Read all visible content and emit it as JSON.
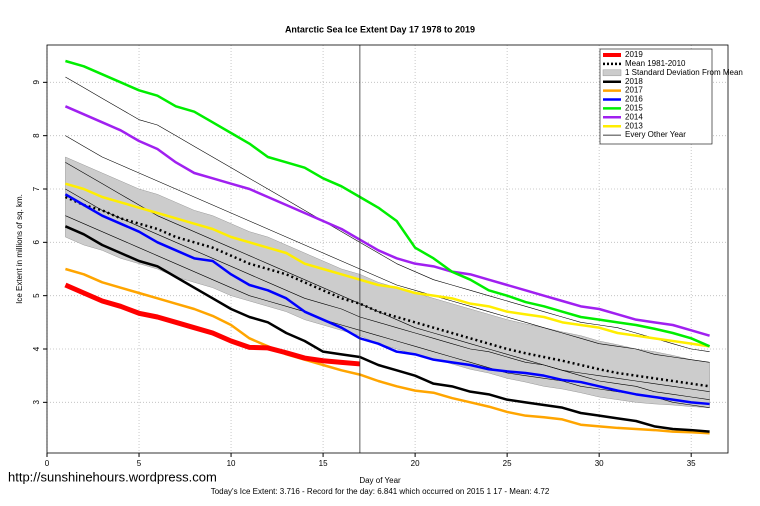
{
  "chart_data": {
    "type": "line",
    "title": "Antarctic Sea Ice Extent Day 17 1978 to 2019",
    "x_label": "Day of Year",
    "y_label": "Ice Extent in millions of sq. km.",
    "footer": "Today's Ice Extent: 3.716  - Record for the day: 6.841 which occurred on 2015 1 17  - Mean: 4.72",
    "watermark": "http://sunshinehours.wordpress.com",
    "xlim": [
      0,
      37
    ],
    "ylim": [
      2.05,
      9.7
    ],
    "xticks": [
      0,
      5,
      10,
      15,
      20,
      25,
      30,
      35
    ],
    "yticks": [
      3,
      4,
      5,
      6,
      7,
      8,
      9
    ],
    "grid": true,
    "legend_position": "top-right",
    "vline": 17,
    "x": [
      1,
      2,
      3,
      4,
      5,
      6,
      7,
      8,
      9,
      10,
      11,
      12,
      13,
      14,
      15,
      16,
      17,
      18,
      19,
      20,
      21,
      22,
      23,
      24,
      25,
      26,
      27,
      28,
      29,
      30,
      31,
      32,
      33,
      34,
      35,
      36
    ],
    "series": [
      {
        "name": "2019",
        "color": "#ff0000",
        "width": 5,
        "values": [
          5.2,
          5.05,
          4.9,
          4.8,
          4.67,
          4.6,
          4.5,
          4.4,
          4.3,
          4.15,
          4.03,
          4.02,
          3.93,
          3.83,
          3.78,
          3.75,
          3.72,
          null,
          null,
          null,
          null,
          null,
          null,
          null,
          null,
          null,
          null,
          null,
          null,
          null,
          null,
          null,
          null,
          null,
          null,
          null
        ]
      },
      {
        "name": "2018",
        "color": "#000000",
        "width": 2.5,
        "values": [
          6.3,
          6.15,
          5.95,
          5.8,
          5.65,
          5.55,
          5.35,
          5.15,
          4.95,
          4.75,
          4.6,
          4.5,
          4.3,
          4.15,
          3.95,
          3.9,
          3.85,
          3.7,
          3.6,
          3.5,
          3.35,
          3.3,
          3.2,
          3.15,
          3.05,
          3.0,
          2.95,
          2.9,
          2.8,
          2.75,
          2.7,
          2.65,
          2.55,
          2.5,
          2.48,
          2.45
        ]
      },
      {
        "name": "2017",
        "color": "#ffa500",
        "width": 2.5,
        "values": [
          5.5,
          5.4,
          5.25,
          5.15,
          5.05,
          4.95,
          4.85,
          4.75,
          4.62,
          4.45,
          4.2,
          4.05,
          3.9,
          3.8,
          3.7,
          3.6,
          3.52,
          3.4,
          3.3,
          3.22,
          3.18,
          3.08,
          3.0,
          2.92,
          2.82,
          2.75,
          2.72,
          2.68,
          2.58,
          2.55,
          2.52,
          2.5,
          2.48,
          2.45,
          2.44,
          2.42
        ]
      },
      {
        "name": "2016",
        "color": "#0000ff",
        "width": 2.5,
        "values": [
          6.9,
          6.7,
          6.5,
          6.35,
          6.2,
          6.0,
          5.85,
          5.7,
          5.65,
          5.4,
          5.2,
          5.1,
          4.95,
          4.7,
          4.55,
          4.4,
          4.2,
          4.1,
          3.95,
          3.9,
          3.8,
          3.75,
          3.7,
          3.62,
          3.58,
          3.55,
          3.5,
          3.42,
          3.38,
          3.3,
          3.22,
          3.15,
          3.1,
          3.05,
          3.0,
          2.97
        ]
      },
      {
        "name": "2015",
        "color": "#00ee00",
        "width": 2.5,
        "values": [
          9.4,
          9.3,
          9.15,
          9.0,
          8.85,
          8.75,
          8.55,
          8.45,
          8.25,
          8.05,
          7.85,
          7.6,
          7.5,
          7.4,
          7.2,
          7.05,
          6.85,
          6.65,
          6.4,
          5.9,
          5.7,
          5.45,
          5.3,
          5.1,
          5.0,
          4.88,
          4.8,
          4.7,
          4.6,
          4.55,
          4.5,
          4.45,
          4.38,
          4.3,
          4.2,
          4.05
        ]
      },
      {
        "name": "2014",
        "color": "#a020f0",
        "width": 2.5,
        "values": [
          8.55,
          8.4,
          8.25,
          8.1,
          7.9,
          7.75,
          7.5,
          7.3,
          7.2,
          7.1,
          7.0,
          6.85,
          6.7,
          6.55,
          6.4,
          6.25,
          6.05,
          5.85,
          5.7,
          5.6,
          5.55,
          5.45,
          5.4,
          5.3,
          5.2,
          5.1,
          5.0,
          4.9,
          4.8,
          4.75,
          4.65,
          4.55,
          4.5,
          4.45,
          4.35,
          4.25
        ]
      },
      {
        "name": "2013",
        "color": "#ffee00",
        "width": 2.5,
        "values": [
          7.1,
          7.0,
          6.85,
          6.75,
          6.65,
          6.55,
          6.45,
          6.35,
          6.25,
          6.1,
          6.0,
          5.9,
          5.8,
          5.6,
          5.5,
          5.4,
          5.3,
          5.2,
          5.15,
          5.05,
          5.0,
          4.95,
          4.85,
          4.8,
          4.7,
          4.65,
          4.6,
          4.5,
          4.45,
          4.4,
          4.3,
          4.25,
          4.2,
          4.15,
          4.1,
          4.05
        ]
      }
    ],
    "mean": {
      "name": "Mean 1981-2010",
      "color": "#000000",
      "values": [
        6.85,
        6.7,
        6.6,
        6.45,
        6.35,
        6.25,
        6.1,
        6.0,
        5.9,
        5.75,
        5.6,
        5.5,
        5.4,
        5.25,
        5.1,
        4.95,
        4.85,
        4.7,
        4.6,
        4.5,
        4.4,
        4.3,
        4.2,
        4.1,
        4.0,
        3.92,
        3.85,
        3.78,
        3.7,
        3.62,
        3.55,
        3.5,
        3.45,
        3.4,
        3.35,
        3.3
      ]
    },
    "std_band": {
      "name": "1 Standard Deviation From Mean",
      "color": "#cccccc",
      "upper": [
        7.6,
        7.45,
        7.3,
        7.15,
        7.0,
        6.9,
        6.75,
        6.6,
        6.5,
        6.35,
        6.2,
        6.1,
        5.95,
        5.8,
        5.65,
        5.5,
        5.4,
        5.25,
        5.15,
        5.05,
        4.95,
        4.85,
        4.75,
        4.65,
        4.55,
        4.47,
        4.4,
        4.32,
        4.25,
        4.15,
        4.08,
        4.0,
        3.95,
        3.88,
        3.8,
        3.75
      ],
      "lower": [
        6.1,
        5.95,
        5.85,
        5.7,
        5.6,
        5.5,
        5.35,
        5.25,
        5.15,
        5.0,
        4.9,
        4.8,
        4.7,
        4.55,
        4.45,
        4.35,
        4.25,
        4.1,
        4.0,
        3.9,
        3.82,
        3.72,
        3.62,
        3.55,
        3.45,
        3.38,
        3.3,
        3.25,
        3.18,
        3.1,
        3.05,
        3.0,
        2.97,
        2.95,
        2.92,
        2.9
      ]
    },
    "other_years": {
      "name": "Every Other Year",
      "color": "#000000",
      "lines": [
        [
          9.1,
          8.9,
          8.7,
          8.5,
          8.3,
          8.2,
          8.0,
          7.8,
          7.6,
          7.4,
          7.2,
          7.0,
          6.8,
          6.6,
          6.4,
          6.2,
          6.0,
          5.8,
          5.6,
          5.45,
          5.3,
          5.2,
          5.1,
          5.0,
          4.9,
          4.8,
          4.7,
          4.6,
          4.5,
          4.45,
          4.4,
          4.3,
          4.2,
          4.1,
          4.0,
          3.95
        ],
        [
          8.0,
          7.8,
          7.6,
          7.45,
          7.3,
          7.15,
          7.0,
          6.85,
          6.7,
          6.55,
          6.4,
          6.25,
          6.1,
          5.95,
          5.8,
          5.65,
          5.5,
          5.35,
          5.2,
          5.1,
          5.0,
          4.9,
          4.8,
          4.7,
          4.6,
          4.5,
          4.4,
          4.3,
          4.2,
          4.1,
          4.05,
          4.0,
          3.9,
          3.85,
          3.8,
          3.75
        ],
        [
          7.5,
          7.3,
          7.1,
          6.9,
          6.7,
          6.5,
          6.35,
          6.2,
          6.05,
          5.9,
          5.75,
          5.6,
          5.45,
          5.3,
          5.15,
          5.0,
          4.85,
          4.7,
          4.55,
          4.4,
          4.3,
          4.2,
          4.1,
          4.0,
          3.9,
          3.8,
          3.7,
          3.6,
          3.5,
          3.4,
          3.35,
          3.3,
          3.2,
          3.15,
          3.1,
          3.05
        ],
        [
          6.5,
          6.35,
          6.2,
          6.05,
          5.9,
          5.75,
          5.6,
          5.45,
          5.3,
          5.15,
          5.0,
          4.9,
          4.8,
          4.7,
          4.55,
          4.45,
          4.35,
          4.25,
          4.15,
          4.05,
          3.95,
          3.85,
          3.75,
          3.65,
          3.55,
          3.5,
          3.45,
          3.4,
          3.3,
          3.25,
          3.2,
          3.15,
          3.1,
          3.0,
          2.95,
          2.9
        ],
        [
          7.0,
          6.8,
          6.6,
          6.45,
          6.3,
          6.15,
          6.0,
          5.85,
          5.7,
          5.55,
          5.4,
          5.25,
          5.1,
          4.95,
          4.85,
          4.75,
          4.6,
          4.5,
          4.4,
          4.3,
          4.2,
          4.1,
          4.0,
          3.95,
          3.85,
          3.75,
          3.7,
          3.6,
          3.55,
          3.5,
          3.45,
          3.4,
          3.35,
          3.3,
          3.25,
          3.2
        ]
      ]
    }
  }
}
